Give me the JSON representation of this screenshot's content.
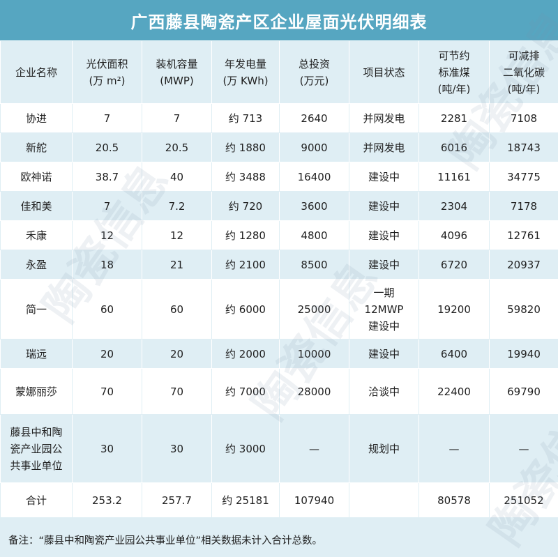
{
  "title": "广西藤县陶瓷产区企业屋面光伏明细表",
  "headers": {
    "company": "企业名称",
    "area_l1": "光伏面积",
    "area_l2": "(万 m²)",
    "capacity_l1": "装机容量",
    "capacity_l2": "(MWP)",
    "power_l1": "年发电量",
    "power_l2": "(万 KWh)",
    "invest_l1": "总投资",
    "invest_l2": "(万元)",
    "status": "项目状态",
    "coal_l1": "可节约",
    "coal_l2": "标准煤",
    "coal_l3": "(吨/年)",
    "co2_l1": "可减排",
    "co2_l2": "二氧化碳",
    "co2_l3": "(吨/年)"
  },
  "rows": [
    {
      "name": "协进",
      "area": "7",
      "capacity": "7",
      "power": "约 713",
      "invest": "2640",
      "status": "并网发电",
      "coal": "2281",
      "co2": "7108"
    },
    {
      "name": "新舵",
      "area": "20.5",
      "capacity": "20.5",
      "power": "约 1880",
      "invest": "9000",
      "status": "并网发电",
      "coal": "6016",
      "co2": "18743"
    },
    {
      "name": "欧神诺",
      "area": "38.7",
      "capacity": "40",
      "power": "约 3488",
      "invest": "16400",
      "status": "建设中",
      "coal": "11161",
      "co2": "34775"
    },
    {
      "name": "佳和美",
      "area": "7",
      "capacity": "7.2",
      "power": "约 720",
      "invest": "3600",
      "status": "建设中",
      "coal": "2304",
      "co2": "7178"
    },
    {
      "name": "禾康",
      "area": "12",
      "capacity": "12",
      "power": "约 1280",
      "invest": "4800",
      "status": "建设中",
      "coal": "4096",
      "co2": "12761"
    },
    {
      "name": "永盈",
      "area": "18",
      "capacity": "21",
      "power": "约 2100",
      "invest": "8500",
      "status": "建设中",
      "coal": "6720",
      "co2": "20937"
    },
    {
      "name": "简一",
      "area": "60",
      "capacity": "60",
      "power": "约 6000",
      "invest": "25000",
      "status_l1": "一期",
      "status_l2": "12MWP",
      "status_l3": "建设中",
      "coal": "19200",
      "co2": "59820"
    },
    {
      "name": "瑞远",
      "area": "20",
      "capacity": "20",
      "power": "约 2000",
      "invest": "10000",
      "status": "建设中",
      "coal": "6400",
      "co2": "19940"
    },
    {
      "name": "蒙娜丽莎",
      "area": "70",
      "capacity": "70",
      "power": "约 7000",
      "invest": "28000",
      "status": "洽谈中",
      "coal": "22400",
      "co2": "69790"
    },
    {
      "name_l1": "藤县中和陶",
      "name_l2": "瓷产业园公",
      "name_l3": "共事业单位",
      "area": "30",
      "capacity": "30",
      "power": "约 3000",
      "invest": "—",
      "status": "规划中",
      "coal": "—",
      "co2": "—"
    }
  ],
  "total": {
    "name": "合计",
    "area": "253.2",
    "capacity": "257.7",
    "power": "约 25181",
    "invest": "107940",
    "status": "",
    "coal": "80578",
    "co2": "251052"
  },
  "footnote": "备注：“藤县中和陶瓷产业园公共事业单位”相关数据未计入合计总数。",
  "watermark": "陶瓷信息",
  "colors": {
    "title_bg": "#56a6c1",
    "band_light": "#dfeef4",
    "band_white": "#ffffff"
  }
}
